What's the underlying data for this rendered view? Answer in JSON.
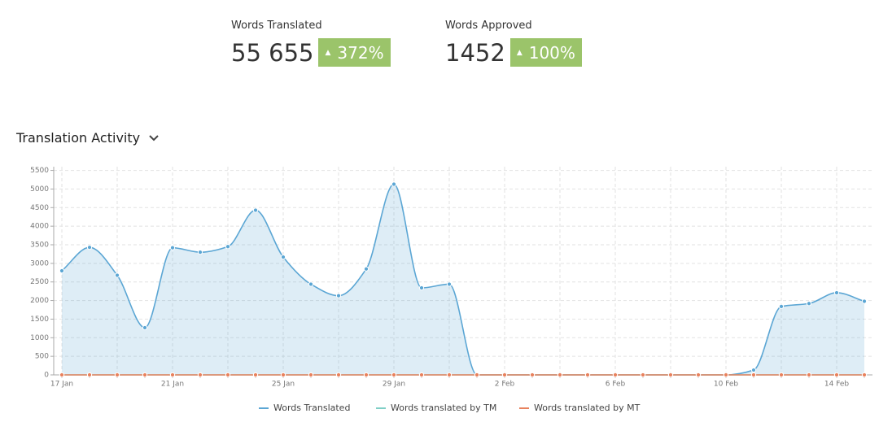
{
  "stats": [
    {
      "label": "Words Translated",
      "value": "55 655",
      "change": "372%"
    },
    {
      "label": "Words Approved",
      "value": "1452",
      "change": "100%"
    }
  ],
  "section_title": "Translation Activity",
  "chart_data": {
    "type": "area",
    "categories": [
      "17 Jan",
      null,
      null,
      null,
      "21 Jan",
      null,
      null,
      null,
      "25 Jan",
      null,
      null,
      null,
      "29 Jan",
      null,
      null,
      null,
      "2 Feb",
      null,
      null,
      null,
      "6 Feb",
      null,
      null,
      null,
      "10 Feb",
      null,
      null,
      null,
      "14 Feb",
      null
    ],
    "series": [
      {
        "name": "Words Translated",
        "color": "#5ba6d4",
        "values": [
          2800,
          3430,
          2680,
          1270,
          3420,
          3300,
          3450,
          4430,
          3170,
          2440,
          2130,
          2850,
          5130,
          2340,
          2440,
          0,
          0,
          0,
          0,
          0,
          0,
          0,
          0,
          0,
          0,
          130,
          1840,
          1920,
          2210,
          1980
        ]
      },
      {
        "name": "Words translated by TM",
        "color": "#7fcfc6",
        "values": [
          0,
          0,
          0,
          0,
          0,
          0,
          0,
          0,
          0,
          0,
          0,
          0,
          0,
          0,
          0,
          0,
          0,
          0,
          0,
          0,
          0,
          0,
          0,
          0,
          0,
          0,
          0,
          0,
          0,
          0
        ]
      },
      {
        "name": "Words translated by MT",
        "color": "#e8825e",
        "values": [
          0,
          0,
          0,
          0,
          0,
          0,
          0,
          0,
          0,
          0,
          0,
          0,
          0,
          0,
          0,
          0,
          0,
          0,
          0,
          0,
          0,
          0,
          0,
          0,
          0,
          0,
          0,
          0,
          0,
          0
        ]
      }
    ],
    "ylim": [
      0,
      5600
    ],
    "yticks": [
      0,
      500,
      1000,
      1500,
      2000,
      2500,
      3000,
      3500,
      4000,
      4500,
      5000,
      5500
    ],
    "grid": true
  }
}
